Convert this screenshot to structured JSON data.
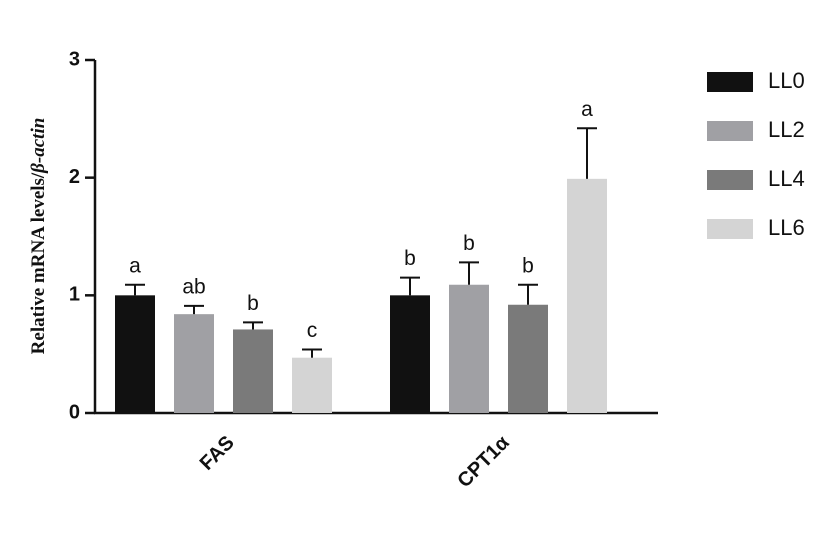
{
  "chart_data": {
    "type": "bar",
    "ylabel_parts": [
      "Relative mRNA levels/",
      "β-actin"
    ],
    "categories": [
      "FAS",
      "CPT1α"
    ],
    "series": [
      {
        "name": "LL0",
        "color": "#111111",
        "values": [
          1.0,
          1.0
        ],
        "errors": [
          0.09,
          0.15
        ],
        "letters": [
          "a",
          "b"
        ]
      },
      {
        "name": "LL2",
        "color": "#a0a0a4",
        "values": [
          0.84,
          1.09
        ],
        "errors": [
          0.07,
          0.19
        ],
        "letters": [
          "ab",
          "b"
        ]
      },
      {
        "name": "LL4",
        "color": "#7a7a7a",
        "values": [
          0.71,
          0.92
        ],
        "errors": [
          0.06,
          0.17
        ],
        "letters": [
          "b",
          "b"
        ]
      },
      {
        "name": "LL6",
        "color": "#d4d4d4",
        "values": [
          0.47,
          1.99
        ],
        "errors": [
          0.07,
          0.43
        ],
        "letters": [
          "c",
          "a"
        ]
      }
    ],
    "ylim": [
      0,
      3
    ],
    "yticks": [
      0,
      1,
      2,
      3
    ]
  }
}
